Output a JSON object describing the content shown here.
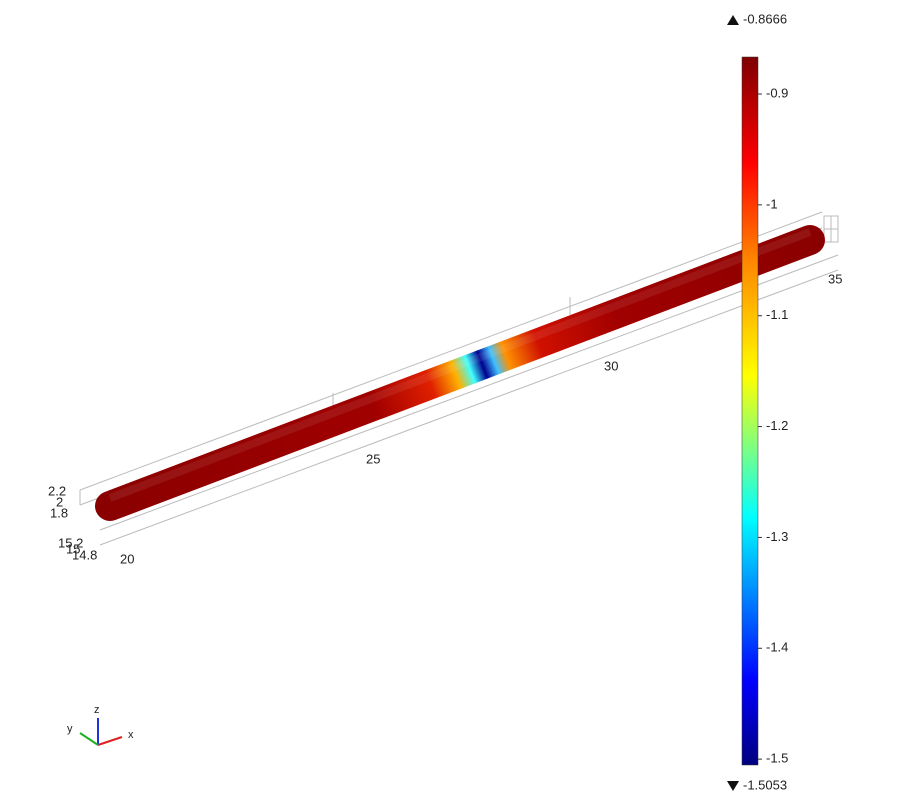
{
  "colorbar": {
    "max": -0.8666,
    "min": -1.5053,
    "ticks": [
      -0.9,
      -1,
      -1.1,
      -1.2,
      -1.3,
      -1.4,
      -1.5
    ]
  },
  "axes": {
    "x_ticks": [
      "20",
      "25",
      "30",
      "35"
    ],
    "z_ticks": [
      "2.2",
      "2",
      "1.8"
    ],
    "y_ticks": [
      "15.2",
      "15",
      "14.8"
    ]
  },
  "triad": {
    "x": "x",
    "y": "y",
    "z": "z"
  }
}
